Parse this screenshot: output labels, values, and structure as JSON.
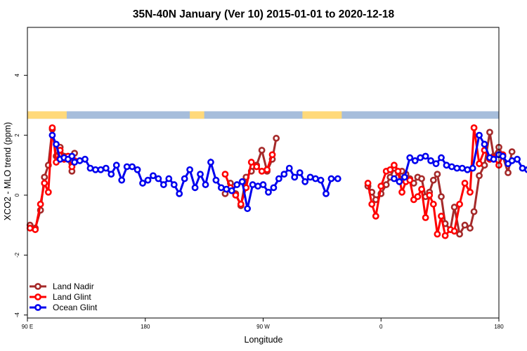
{
  "chart_data": {
    "type": "line",
    "title": "35N-40N January (Ver 10)   2015-01-01 to 2020-12-18",
    "xlabel": "Longitude",
    "ylabel": "XCO2 - MLO trend (ppm)",
    "xlim": [
      90,
      450
    ],
    "ylim": [
      -4.1,
      5.6
    ],
    "x_ticks": [
      {
        "value": 90,
        "label": "90 E"
      },
      {
        "value": 180,
        "label": "180"
      },
      {
        "value": 270,
        "label": "90 W"
      },
      {
        "value": 360,
        "label": "0"
      },
      {
        "value": 450,
        "label": "180"
      },
      {
        "value": 540,
        "label": "90 E"
      }
    ],
    "y_ticks": [
      -4,
      -2,
      0,
      2,
      4
    ],
    "legend_position": "bottom-left",
    "land_ocean_band": {
      "y_range": [
        2.55,
        2.8
      ],
      "ocean_color": "#a6bddb",
      "land_color": "#ffd97a",
      "land_segments": [
        [
          90,
          120
        ],
        [
          214,
          225
        ],
        [
          300,
          330
        ],
        [
          460,
          470
        ],
        [
          505,
          534
        ]
      ]
    },
    "series": [
      {
        "name": "Land Nadir",
        "color": "#a52a2a",
        "points": [
          [
            92,
            -1.0
          ],
          [
            96,
            -1.1
          ],
          [
            100,
            -0.5
          ],
          [
            103,
            0.6
          ],
          [
            106,
            1.0
          ],
          [
            109,
            2.2
          ],
          [
            112,
            1.3
          ],
          [
            115,
            1.6
          ],
          [
            118,
            1.3
          ],
          [
            121,
            1.2
          ],
          [
            124,
            0.8
          ],
          [
            126,
            1.4
          ],
          [
            241,
            0.05
          ],
          [
            245,
            0.4
          ],
          [
            249,
            0.05
          ],
          [
            253,
            -0.35
          ],
          [
            257,
            0.6
          ],
          [
            261,
            0.8
          ],
          [
            265,
            1.0
          ],
          [
            269,
            1.5
          ],
          [
            273,
            0.8
          ],
          [
            277,
            1.2
          ],
          [
            280,
            1.9
          ],
          [
            350,
            0.3
          ],
          [
            353,
            0.1
          ],
          [
            356,
            -0.15
          ],
          [
            360,
            0.05
          ],
          [
            364,
            0.35
          ],
          [
            367,
            0.6
          ],
          [
            370,
            0.9
          ],
          [
            373,
            0.6
          ],
          [
            376,
            0.8
          ],
          [
            379,
            0.7
          ],
          [
            382,
            0.55
          ],
          [
            385,
            0.4
          ],
          [
            388,
            0.6
          ],
          [
            391,
            0.55
          ],
          [
            394,
            -0.05
          ],
          [
            397,
            0.1
          ],
          [
            400,
            0.5
          ],
          [
            403,
            0.7
          ],
          [
            406,
            -0.05
          ],
          [
            409,
            -0.95
          ],
          [
            413,
            -1.15
          ],
          [
            416,
            -0.4
          ],
          [
            420,
            -1.3
          ],
          [
            424,
            -1.0
          ],
          [
            428,
            -1.1
          ],
          [
            431,
            -0.55
          ],
          [
            435,
            0.65
          ],
          [
            439,
            1.0
          ],
          [
            443,
            2.1
          ],
          [
            446,
            1.3
          ],
          [
            450,
            1.6
          ],
          [
            453,
            1.3
          ],
          [
            457,
            0.75
          ],
          [
            460,
            1.45
          ]
        ]
      },
      {
        "name": "Land Glint",
        "color": "#ff0000",
        "points": [
          [
            92,
            -1.1
          ],
          [
            96,
            -1.15
          ],
          [
            100,
            -0.3
          ],
          [
            103,
            0.4
          ],
          [
            106,
            0.1
          ],
          [
            109,
            2.25
          ],
          [
            112,
            1.1
          ],
          [
            115,
            1.5
          ],
          [
            118,
            1.2
          ],
          [
            121,
            1.3
          ],
          [
            124,
            0.95
          ],
          [
            126,
            1.15
          ],
          [
            241,
            0.7
          ],
          [
            245,
            0.25
          ],
          [
            249,
            0.0
          ],
          [
            253,
            -0.3
          ],
          [
            257,
            0.25
          ],
          [
            261,
            1.1
          ],
          [
            265,
            0.95
          ],
          [
            269,
            0.8
          ],
          [
            273,
            0.85
          ],
          [
            277,
            1.35
          ],
          [
            350,
            0.4
          ],
          [
            353,
            -0.3
          ],
          [
            356,
            -0.7
          ],
          [
            360,
            0.3
          ],
          [
            364,
            0.8
          ],
          [
            367,
            0.85
          ],
          [
            370,
            1.0
          ],
          [
            373,
            0.8
          ],
          [
            376,
            0.1
          ],
          [
            379,
            0.45
          ],
          [
            382,
            0.5
          ],
          [
            385,
            -0.15
          ],
          [
            388,
            -0.05
          ],
          [
            391,
            0.2
          ],
          [
            394,
            -0.75
          ],
          [
            397,
            0.0
          ],
          [
            400,
            -0.3
          ],
          [
            403,
            -1.3
          ],
          [
            406,
            -0.7
          ],
          [
            409,
            -1.35
          ],
          [
            413,
            -1.15
          ],
          [
            416,
            -1.2
          ],
          [
            420,
            -0.3
          ],
          [
            424,
            0.4
          ],
          [
            428,
            0.1
          ],
          [
            431,
            2.25
          ],
          [
            435,
            1.05
          ],
          [
            439,
            1.5
          ],
          [
            443,
            1.2
          ],
          [
            446,
            1.25
          ],
          [
            450,
            1.0
          ],
          [
            453,
            1.35
          ]
        ]
      },
      {
        "name": "Ocean Glint",
        "color": "#0000ee",
        "points": [
          [
            109,
            2.0
          ],
          [
            112,
            1.7
          ],
          [
            115,
            1.2
          ],
          [
            118,
            1.25
          ],
          [
            121,
            1.2
          ],
          [
            124,
            1.3
          ],
          [
            126,
            1.1
          ],
          [
            130,
            1.15
          ],
          [
            134,
            1.2
          ],
          [
            138,
            0.9
          ],
          [
            142,
            0.85
          ],
          [
            146,
            0.85
          ],
          [
            150,
            0.9
          ],
          [
            154,
            0.7
          ],
          [
            158,
            1.0
          ],
          [
            162,
            0.5
          ],
          [
            166,
            0.95
          ],
          [
            170,
            0.95
          ],
          [
            174,
            0.85
          ],
          [
            178,
            0.4
          ],
          [
            182,
            0.5
          ],
          [
            186,
            0.65
          ],
          [
            190,
            0.55
          ],
          [
            194,
            0.35
          ],
          [
            198,
            0.55
          ],
          [
            202,
            0.35
          ],
          [
            206,
            0.05
          ],
          [
            210,
            0.55
          ],
          [
            214,
            0.85
          ],
          [
            218,
            0.25
          ],
          [
            222,
            0.7
          ],
          [
            226,
            0.35
          ],
          [
            230,
            1.1
          ],
          [
            234,
            0.5
          ],
          [
            238,
            0.25
          ],
          [
            242,
            0.2
          ],
          [
            246,
            0.15
          ],
          [
            250,
            0.35
          ],
          [
            254,
            0.45
          ],
          [
            258,
            -0.45
          ],
          [
            262,
            0.35
          ],
          [
            266,
            0.3
          ],
          [
            270,
            0.35
          ],
          [
            274,
            0.1
          ],
          [
            278,
            0.25
          ],
          [
            282,
            0.55
          ],
          [
            286,
            0.7
          ],
          [
            290,
            0.9
          ],
          [
            294,
            0.6
          ],
          [
            298,
            0.75
          ],
          [
            302,
            0.45
          ],
          [
            306,
            0.6
          ],
          [
            310,
            0.55
          ],
          [
            314,
            0.5
          ],
          [
            318,
            0.05
          ],
          [
            322,
            0.55
          ],
          [
            327,
            0.55
          ],
          [
            370,
            0.55
          ],
          [
            374,
            0.45
          ],
          [
            378,
            0.6
          ],
          [
            382,
            1.25
          ],
          [
            386,
            1.15
          ],
          [
            390,
            1.25
          ],
          [
            394,
            1.3
          ],
          [
            398,
            1.15
          ],
          [
            402,
            1.05
          ],
          [
            406,
            1.25
          ],
          [
            410,
            1.0
          ],
          [
            414,
            0.95
          ],
          [
            418,
            0.9
          ],
          [
            422,
            0.9
          ],
          [
            426,
            0.85
          ],
          [
            430,
            0.9
          ],
          [
            435,
            2.0
          ],
          [
            439,
            1.7
          ],
          [
            443,
            1.25
          ],
          [
            446,
            1.2
          ],
          [
            450,
            1.35
          ],
          [
            453,
            1.3
          ],
          [
            457,
            1.05
          ],
          [
            460,
            1.15
          ],
          [
            464,
            1.2
          ],
          [
            468,
            0.9
          ],
          [
            472,
            0.85
          ],
          [
            476,
            0.8
          ],
          [
            480,
            0.9
          ]
        ]
      }
    ]
  }
}
